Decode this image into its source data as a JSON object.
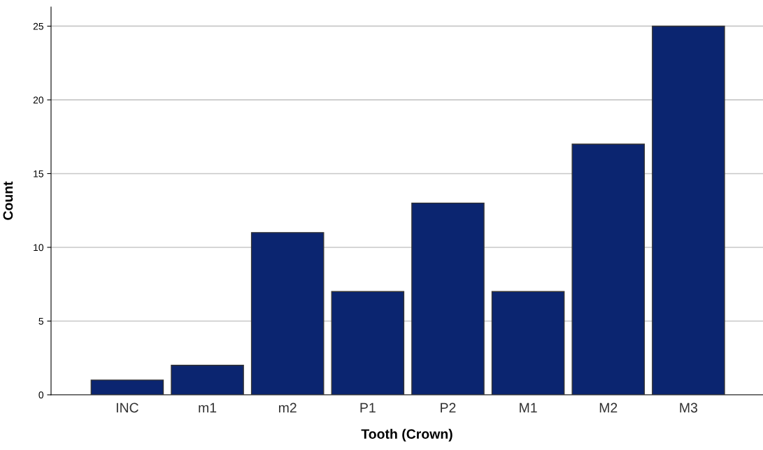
{
  "chart_data": {
    "type": "bar",
    "xlabel": "Tooth (Crown)",
    "ylabel": "Count",
    "categories": [
      "INC",
      "m1",
      "m2",
      "P1",
      "P2",
      "M1",
      "M2",
      "M3"
    ],
    "values": [
      1,
      2,
      11,
      7,
      13,
      7,
      17,
      25
    ],
    "color": "#0b2570",
    "ylim": [
      0,
      26.3
    ],
    "yticks": [
      0,
      5,
      10,
      15,
      20,
      25
    ],
    "grid": "y"
  }
}
